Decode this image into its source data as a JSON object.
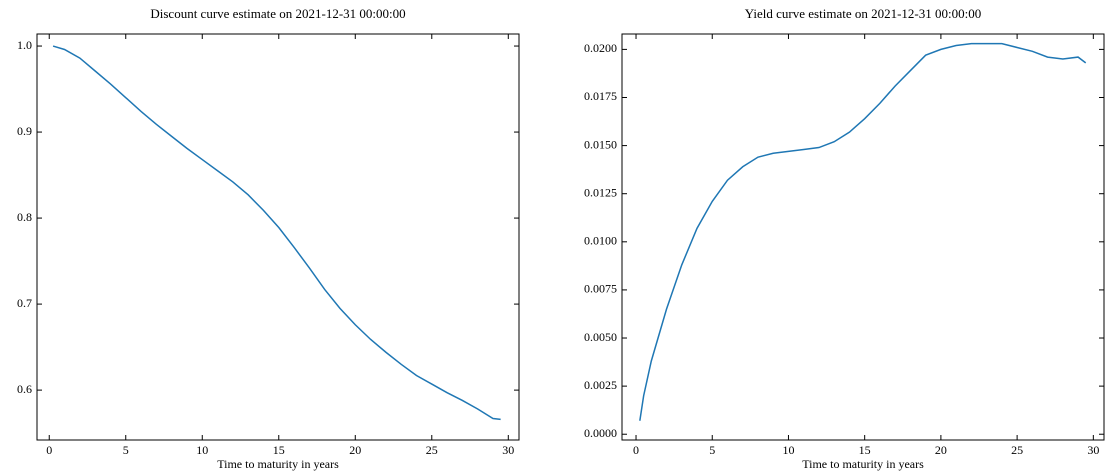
{
  "chart_data": [
    {
      "type": "line",
      "title": "Discount curve estimate on 2021-12-31 00:00:00",
      "xlabel": "Time to maturity in years",
      "x": [
        0.25,
        1,
        2,
        3,
        4,
        5,
        6,
        7,
        8,
        9,
        10,
        11,
        12,
        13,
        14,
        15,
        16,
        17,
        18,
        19,
        20,
        21,
        22,
        23,
        24,
        25,
        26,
        27,
        28,
        29,
        29.5
      ],
      "series": [
        {
          "name": "Discount",
          "color": "#1f77b4",
          "values": [
            1.0,
            0.996,
            0.986,
            0.971,
            0.956,
            0.94,
            0.924,
            0.909,
            0.895,
            0.881,
            0.868,
            0.855,
            0.842,
            0.827,
            0.809,
            0.789,
            0.766,
            0.742,
            0.717,
            0.695,
            0.676,
            0.659,
            0.644,
            0.63,
            0.617,
            0.607,
            0.597,
            0.588,
            0.578,
            0.567,
            0.566
          ]
        }
      ],
      "xlim": [
        -0.8,
        30.7
      ],
      "ylim": [
        0.542,
        1.014
      ],
      "xticks": [
        0,
        5,
        10,
        15,
        20,
        25,
        30
      ],
      "yticks": [
        0.6,
        0.7,
        0.8,
        0.9,
        {
          "value": 1.0,
          "label": "1.0"
        }
      ]
    },
    {
      "type": "line",
      "title": "Yield curve estimate on 2021-12-31 00:00:00",
      "xlabel": "Time to maturity in years",
      "x": [
        0.25,
        0.5,
        1,
        2,
        3,
        4,
        5,
        6,
        7,
        8,
        9,
        10,
        11,
        12,
        13,
        14,
        15,
        16,
        17,
        18,
        19,
        20,
        21,
        22,
        23,
        24,
        25,
        26,
        27,
        28,
        29,
        29.5
      ],
      "series": [
        {
          "name": "Yield",
          "color": "#1f77b4",
          "values": [
            0.0007,
            0.002,
            0.0038,
            0.0065,
            0.0088,
            0.0107,
            0.0121,
            0.0132,
            0.0139,
            0.0144,
            0.0146,
            0.0147,
            0.0148,
            0.0149,
            0.0152,
            0.0157,
            0.0164,
            0.0172,
            0.0181,
            0.0189,
            0.0197,
            0.02,
            0.0202,
            0.0203,
            0.0203,
            0.0203,
            0.0201,
            0.0199,
            0.0196,
            0.0195,
            0.0196,
            0.0193
          ]
        }
      ],
      "xlim": [
        -0.92,
        30.7
      ],
      "ylim": [
        -0.0003,
        0.0208
      ],
      "xticks": [
        0,
        5,
        10,
        15,
        20,
        25,
        30
      ],
      "yticks": [
        {
          "value": 0,
          "label": "0.0000"
        },
        {
          "value": 0.0025,
          "label": "0.0025"
        },
        {
          "value": 0.005,
          "label": "0.0050"
        },
        {
          "value": 0.0075,
          "label": "0.0075"
        },
        {
          "value": 0.01,
          "label": "0.0100"
        },
        {
          "value": 0.0125,
          "label": "0.0125"
        },
        {
          "value": 0.015,
          "label": "0.0150"
        },
        {
          "value": 0.0175,
          "label": "0.0175"
        },
        {
          "value": 0.02,
          "label": "0.0200"
        }
      ]
    }
  ]
}
